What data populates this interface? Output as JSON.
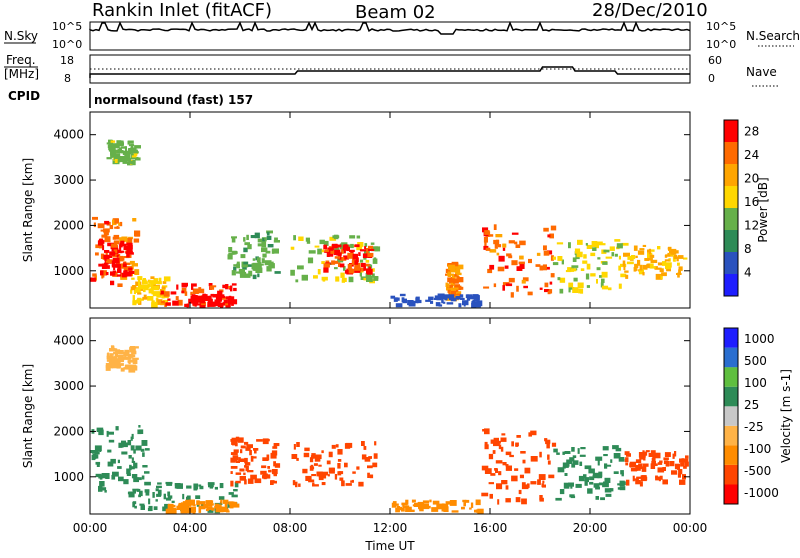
{
  "header": {
    "station": "Rankin Inlet (fitACF)",
    "beam": "Beam 02",
    "date": "28/Dec/2010"
  },
  "top_panels": {
    "nsky_label": "N.Sky",
    "nsky_ticks": [
      "10^5",
      "10^0"
    ],
    "nsearch_label": "N.Search",
    "nsearch_ticks": [
      "10^5",
      "10^0"
    ],
    "freq_label": "Freq.",
    "freq_unit": "[MHz]",
    "freq_ticks": [
      "18",
      "8"
    ],
    "nave_label": "Nave",
    "nave_ticks": [
      "60",
      "0"
    ],
    "cpid_label": "CPID",
    "cpid_text": "normalsound (fast) 157"
  },
  "colors": {
    "power_scale": [
      "#1e1eff",
      "#2a52be",
      "#2e8b57",
      "#66b04a",
      "#ffd700",
      "#ffa500",
      "#ff6a00",
      "#ff0000"
    ],
    "velocity_scale": [
      "#ff0000",
      "#ff4500",
      "#ff8c00",
      "#ffb347",
      "#c8c8c8",
      "#2e8b57",
      "#5fbf3f",
      "#2a6ecf",
      "#1e1eff"
    ]
  },
  "chart_data": [
    {
      "type": "heatmap",
      "title": "",
      "xlabel": "",
      "ylabel": "Slant Range [km]",
      "xlim": [
        "00:00",
        "24:00"
      ],
      "ylim": [
        180,
        4500
      ],
      "x_ticks": [
        "00:00",
        "04:00",
        "08:00",
        "12:00",
        "16:00",
        "20:00",
        "00:00"
      ],
      "y_ticks": [
        "1000",
        "2000",
        "3000",
        "4000"
      ],
      "colorbar": {
        "label": "Power [dB]",
        "ticks": [
          "4",
          "8",
          "12",
          "16",
          "20",
          "24",
          "28"
        ],
        "range": [
          0,
          30
        ]
      },
      "regions": [
        {
          "t": [
            0.0,
            1.8
          ],
          "r": [
            700,
            2200
          ],
          "value": 24
        },
        {
          "t": [
            0.3,
            1.6
          ],
          "r": [
            900,
            1700
          ],
          "value": 29
        },
        {
          "t": [
            1.6,
            3.0
          ],
          "r": [
            300,
            900
          ],
          "value": 18
        },
        {
          "t": [
            2.8,
            5.8
          ],
          "r": [
            250,
            750
          ],
          "value": 26
        },
        {
          "t": [
            4.0,
            5.6
          ],
          "r": [
            200,
            500
          ],
          "value": 30
        },
        {
          "t": [
            5.5,
            7.4
          ],
          "r": [
            900,
            1900
          ],
          "value": 12
        },
        {
          "t": [
            8.0,
            11.4
          ],
          "r": [
            800,
            1800
          ],
          "value": 14
        },
        {
          "t": [
            9.3,
            11.2
          ],
          "r": [
            1000,
            1600
          ],
          "value": 27
        },
        {
          "t": [
            0.6,
            1.8
          ],
          "r": [
            3400,
            3900
          ],
          "value": 14
        },
        {
          "t": [
            14.2,
            14.7
          ],
          "r": [
            400,
            1200
          ],
          "value": 22
        },
        {
          "t": [
            15.6,
            18.5
          ],
          "r": [
            500,
            2100
          ],
          "value": 25
        },
        {
          "t": [
            18.5,
            21.3
          ],
          "r": [
            600,
            1700
          ],
          "value": 16
        },
        {
          "t": [
            21.3,
            23.8
          ],
          "r": [
            900,
            1600
          ],
          "value": 20
        },
        {
          "t": [
            12.0,
            15.5
          ],
          "r": [
            200,
            500
          ],
          "value": 6
        }
      ]
    },
    {
      "type": "heatmap",
      "title": "",
      "xlabel": "Time UT",
      "ylabel": "Slant Range [km]",
      "xlim": [
        "00:00",
        "24:00"
      ],
      "ylim": [
        180,
        4500
      ],
      "x_ticks": [
        "00:00",
        "04:00",
        "08:00",
        "12:00",
        "16:00",
        "20:00",
        "00:00"
      ],
      "y_ticks": [
        "1000",
        "2000",
        "3000",
        "4000"
      ],
      "colorbar": {
        "label": "Velocity [m s-1]",
        "ticks": [
          "1000",
          "500",
          "100",
          "25",
          "-25",
          "-100",
          "-500",
          "-1000"
        ],
        "range": [
          -1000,
          1000
        ]
      },
      "regions": [
        {
          "t": [
            0.0,
            2.2
          ],
          "r": [
            700,
            2200
          ],
          "value": 40
        },
        {
          "t": [
            1.5,
            5.8
          ],
          "r": [
            300,
            900
          ],
          "value": 60
        },
        {
          "t": [
            3.0,
            5.8
          ],
          "r": [
            200,
            500
          ],
          "value": -80
        },
        {
          "t": [
            5.6,
            7.4
          ],
          "r": [
            900,
            1900
          ],
          "value": -150
        },
        {
          "t": [
            8.0,
            11.4
          ],
          "r": [
            800,
            1800
          ],
          "value": -200
        },
        {
          "t": [
            0.6,
            1.8
          ],
          "r": [
            3400,
            3900
          ],
          "value": -20
        },
        {
          "t": [
            15.6,
            18.5
          ],
          "r": [
            500,
            2100
          ],
          "value": -400
        },
        {
          "t": [
            18.5,
            21.3
          ],
          "r": [
            500,
            1700
          ],
          "value": 50
        },
        {
          "t": [
            21.3,
            23.8
          ],
          "r": [
            900,
            1600
          ],
          "value": -200
        },
        {
          "t": [
            12.0,
            15.5
          ],
          "r": [
            200,
            500
          ],
          "value": -30
        }
      ]
    }
  ]
}
